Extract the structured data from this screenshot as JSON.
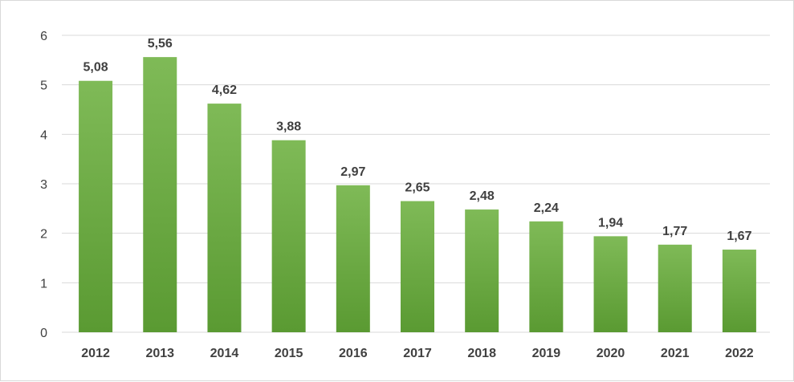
{
  "chart_data": {
    "type": "bar",
    "categories": [
      "2012",
      "2013",
      "2014",
      "2015",
      "2016",
      "2017",
      "2018",
      "2019",
      "2020",
      "2021",
      "2022"
    ],
    "values": [
      5.08,
      5.56,
      4.62,
      3.88,
      2.97,
      2.65,
      2.48,
      2.24,
      1.94,
      1.77,
      1.67
    ],
    "data_labels": [
      "5,08",
      "5,56",
      "4,62",
      "3,88",
      "2,97",
      "2,65",
      "2,48",
      "2,24",
      "1,94",
      "1,77",
      "1,67"
    ],
    "y_ticks": [
      "0",
      "1",
      "2",
      "3",
      "4",
      "5",
      "6"
    ],
    "ylim": [
      0,
      6
    ],
    "grid": true,
    "legend": "none",
    "bar_color": "#70ad47",
    "bar_color_light": "#7fba57",
    "bar_color_dark": "#5a9a32",
    "gridline_color": "#d9d9d9",
    "text_color": "#404040"
  }
}
